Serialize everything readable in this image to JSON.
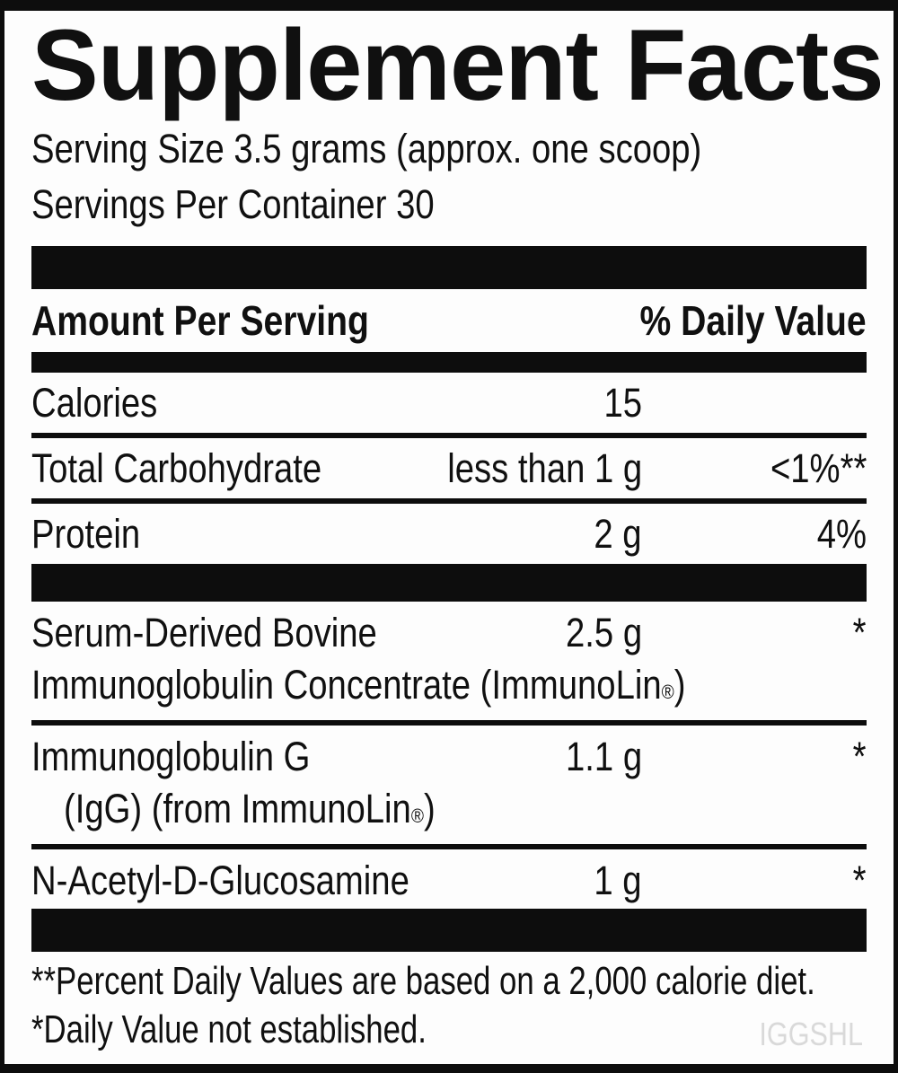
{
  "label": {
    "title": "Supplement Facts",
    "serving_size": "Serving Size 3.5 grams (approx. one scoop)",
    "servings_per_container": "Servings Per Container 30",
    "header": {
      "amount": "Amount Per Serving",
      "daily_value": "% Daily Value"
    },
    "nutrients": [
      {
        "name": "Calories",
        "amount": "15",
        "dv": ""
      },
      {
        "name": "Total Carbohydrate",
        "amount": "less than 1 g",
        "dv": "<1%**"
      },
      {
        "name": "Protein",
        "amount": "2 g",
        "dv": "4%"
      }
    ],
    "ingredients": [
      {
        "name_line1": "Serum-Derived Bovine",
        "name_line2": "Immunoglobulin Concentrate (ImmunoLin®)",
        "amount": "2.5 g",
        "dv": "*"
      },
      {
        "name_line1": "Immunoglobulin G",
        "name_line2": "(IgG) (from ImmunoLin®)",
        "amount": "1.1 g",
        "dv": "*"
      },
      {
        "name_line1": "N-Acetyl-D-Glucosamine",
        "amount": "1 g",
        "dv": "*"
      }
    ],
    "footnotes": [
      "**Percent Daily Values are based on a 2,000 calorie diet.",
      "*Daily Value not established."
    ],
    "watermark": "IGGSHL",
    "colors": {
      "text": "#101010",
      "bars": "#0d0d0d",
      "background": "#fdfdfd",
      "watermark": "#d9d9d9"
    }
  }
}
